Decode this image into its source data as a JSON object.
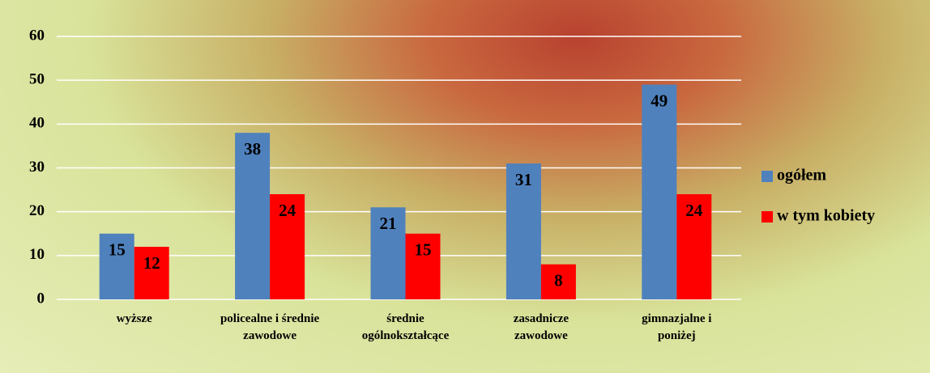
{
  "chart_data": {
    "type": "bar",
    "categories": [
      "wyższe",
      "policealne i średnie zawodowe",
      "średnie ogólnokształcące",
      "zasadnicze zawodowe",
      "gimnazjalne i poniżej"
    ],
    "series": [
      {
        "name": "ogółem",
        "color": "#4f81bd",
        "values": [
          15,
          38,
          21,
          31,
          49
        ]
      },
      {
        "name": "w tym kobiety",
        "color": "#ff0000",
        "values": [
          12,
          24,
          15,
          8,
          24
        ]
      }
    ],
    "ylim": [
      0,
      60
    ],
    "yticks": [
      0,
      10,
      20,
      30,
      40,
      50,
      60
    ],
    "grid": true,
    "legend": "right"
  }
}
